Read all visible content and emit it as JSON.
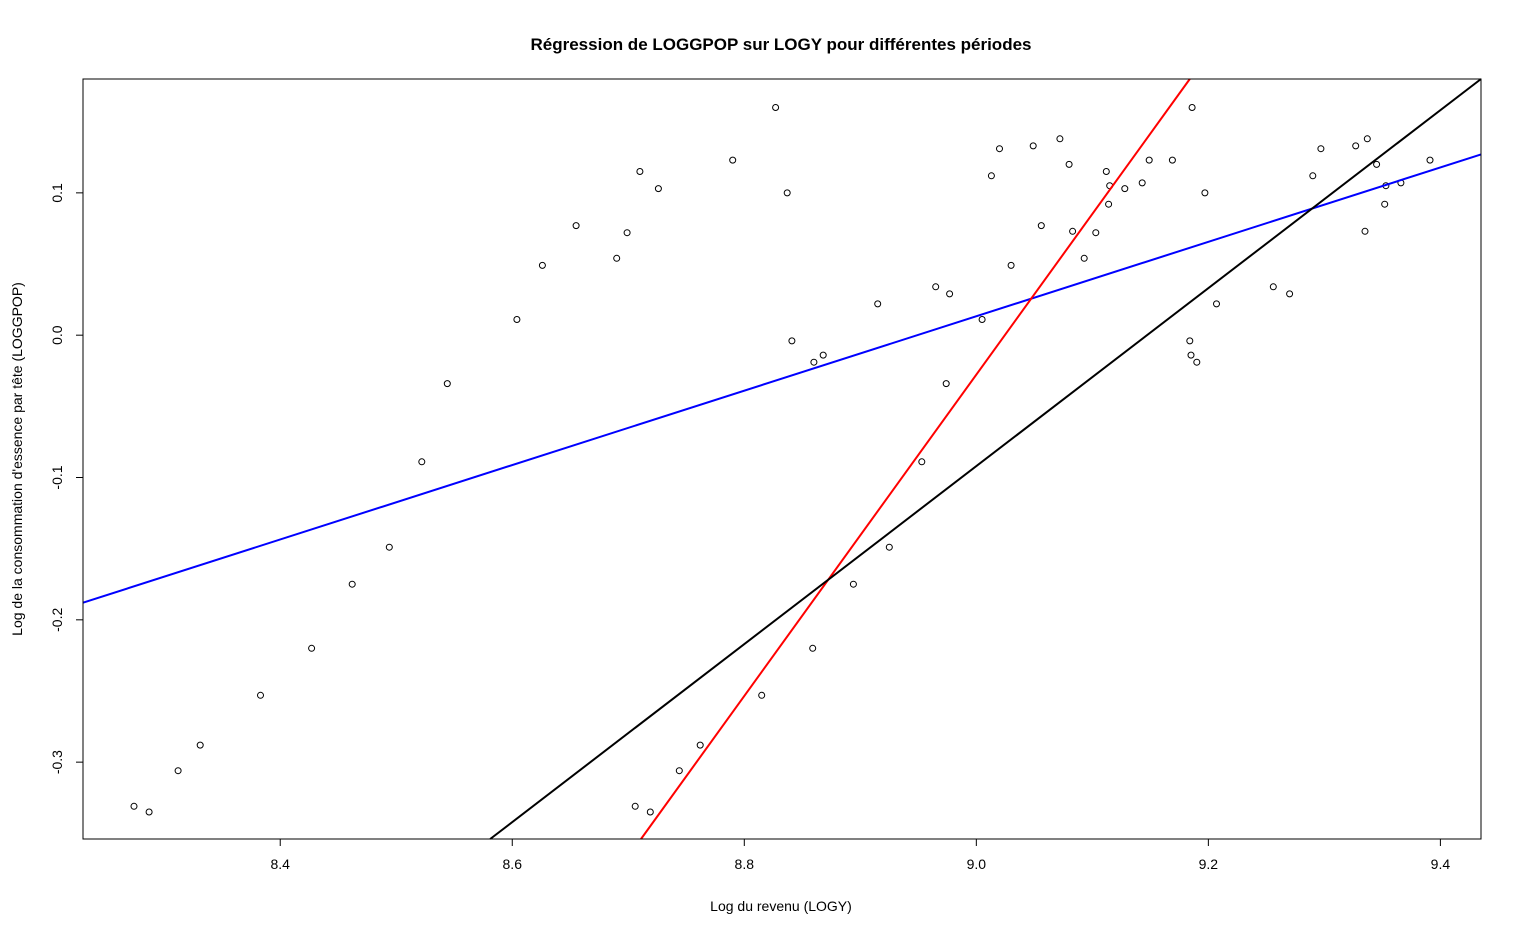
{
  "chart_data": {
    "type": "scatter",
    "title": "Régression de LOGGPOP sur LOGY pour différentes périodes",
    "xlabel": "Log du revenu (LOGY)",
    "ylabel": "Log de la consommation d'essence par tête (LOGGPOP)",
    "xlim": [
      8.23,
      9.435
    ],
    "ylim": [
      -0.354,
      0.18
    ],
    "x_ticks": [
      8.4,
      8.6,
      8.8,
      9.0,
      9.2,
      9.4
    ],
    "x_tick_labels": [
      "8.4",
      "8.6",
      "8.8",
      "9.0",
      "9.2",
      "9.4"
    ],
    "y_ticks": [
      -0.3,
      -0.2,
      -0.1,
      0.0,
      0.1
    ],
    "y_tick_labels": [
      "-0.3",
      "-0.2",
      "-0.1",
      "0.0",
      "0.1"
    ],
    "grid": false,
    "point_color": "#000000",
    "series": [
      {
        "points": [
          [
            8.274,
            -0.331
          ],
          [
            8.287,
            -0.335
          ],
          [
            8.312,
            -0.306
          ],
          [
            8.331,
            -0.288
          ],
          [
            8.383,
            -0.253
          ],
          [
            8.427,
            -0.22
          ],
          [
            8.462,
            -0.175
          ],
          [
            8.494,
            -0.149
          ],
          [
            8.522,
            -0.089
          ],
          [
            8.544,
            -0.034
          ],
          [
            8.604,
            0.011
          ],
          [
            8.626,
            0.049
          ],
          [
            8.655,
            0.077
          ],
          [
            8.69,
            0.054
          ],
          [
            8.699,
            0.072
          ],
          [
            8.71,
            0.115
          ],
          [
            8.726,
            0.103
          ],
          [
            8.79,
            0.123
          ],
          [
            8.827,
            0.16
          ],
          [
            8.837,
            0.1
          ],
          [
            8.841,
            -0.004
          ],
          [
            8.86,
            -0.019
          ],
          [
            8.868,
            -0.014
          ],
          [
            8.915,
            0.022
          ],
          [
            8.965,
            0.034
          ],
          [
            8.974,
            -0.034
          ],
          [
            8.977,
            0.029
          ],
          [
            9.005,
            0.011
          ],
          [
            9.013,
            0.112
          ],
          [
            9.02,
            0.131
          ],
          [
            9.03,
            0.049
          ],
          [
            9.049,
            0.133
          ],
          [
            9.056,
            0.077
          ],
          [
            9.072,
            0.138
          ],
          [
            9.08,
            0.12
          ],
          [
            9.083,
            0.073
          ],
          [
            9.093,
            0.054
          ],
          [
            9.103,
            0.072
          ],
          [
            9.112,
            0.115
          ],
          [
            9.114,
            0.092
          ],
          [
            9.115,
            0.105
          ],
          [
            9.128,
            0.103
          ],
          [
            9.143,
            0.107
          ],
          [
            9.149,
            0.123
          ],
          [
            9.169,
            0.123
          ],
          [
            9.184,
            -0.004
          ],
          [
            9.185,
            -0.014
          ],
          [
            9.186,
            0.16
          ],
          [
            9.19,
            -0.019
          ],
          [
            9.197,
            0.1
          ],
          [
            9.207,
            0.022
          ],
          [
            9.256,
            0.034
          ],
          [
            9.27,
            0.029
          ],
          [
            9.29,
            0.112
          ],
          [
            9.297,
            0.131
          ],
          [
            9.327,
            0.133
          ],
          [
            9.335,
            0.073
          ],
          [
            9.337,
            0.138
          ],
          [
            9.345,
            0.12
          ],
          [
            9.352,
            0.092
          ],
          [
            9.353,
            0.105
          ],
          [
            9.366,
            0.107
          ],
          [
            9.391,
            0.123
          ],
          [
            8.706,
            -0.331
          ],
          [
            8.719,
            -0.335
          ],
          [
            8.744,
            -0.306
          ],
          [
            8.762,
            -0.288
          ],
          [
            8.815,
            -0.253
          ],
          [
            8.859,
            -0.22
          ],
          [
            8.894,
            -0.175
          ],
          [
            8.925,
            -0.149
          ],
          [
            8.953,
            -0.089
          ]
        ]
      }
    ],
    "regression_lines": [
      {
        "color": "#0000ff",
        "x": [
          8.23,
          9.435
        ],
        "y": [
          -0.188,
          0.127
        ]
      },
      {
        "color": "#ff0000",
        "x": [
          8.711,
          9.184
        ],
        "y": [
          -0.354,
          0.18
        ]
      },
      {
        "color": "#000000",
        "x": [
          8.581,
          9.435
        ],
        "y": [
          -0.354,
          0.18
        ]
      }
    ]
  }
}
